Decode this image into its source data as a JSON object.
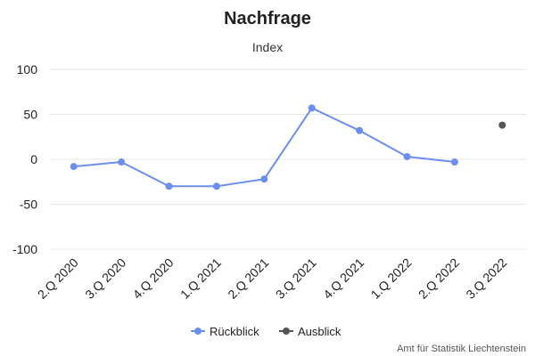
{
  "chart_data": {
    "type": "line",
    "title": "Nachfrage",
    "subtitle": "Index",
    "categories": [
      "2.Q 2020",
      "3.Q 2020",
      "4.Q 2020",
      "1.Q 2021",
      "2.Q 2021",
      "3.Q 2021",
      "4.Q 2021",
      "1.Q 2022",
      "2.Q 2022",
      "3.Q 2022"
    ],
    "ylim": [
      -100,
      100
    ],
    "yticks": [
      -100,
      -50,
      0,
      50,
      100
    ],
    "grid": true,
    "legend_position": "bottom-center",
    "series": [
      {
        "name": "Rückblick",
        "color": "#6b8ff0",
        "values": [
          -8,
          -3,
          -30,
          -30,
          -22,
          57,
          32,
          3,
          -3,
          null
        ]
      },
      {
        "name": "Ausblick",
        "color": "#555555",
        "values": [
          null,
          null,
          null,
          null,
          null,
          null,
          null,
          null,
          null,
          38
        ]
      }
    ],
    "credit": "Amt für Statistik Liechtenstein"
  }
}
